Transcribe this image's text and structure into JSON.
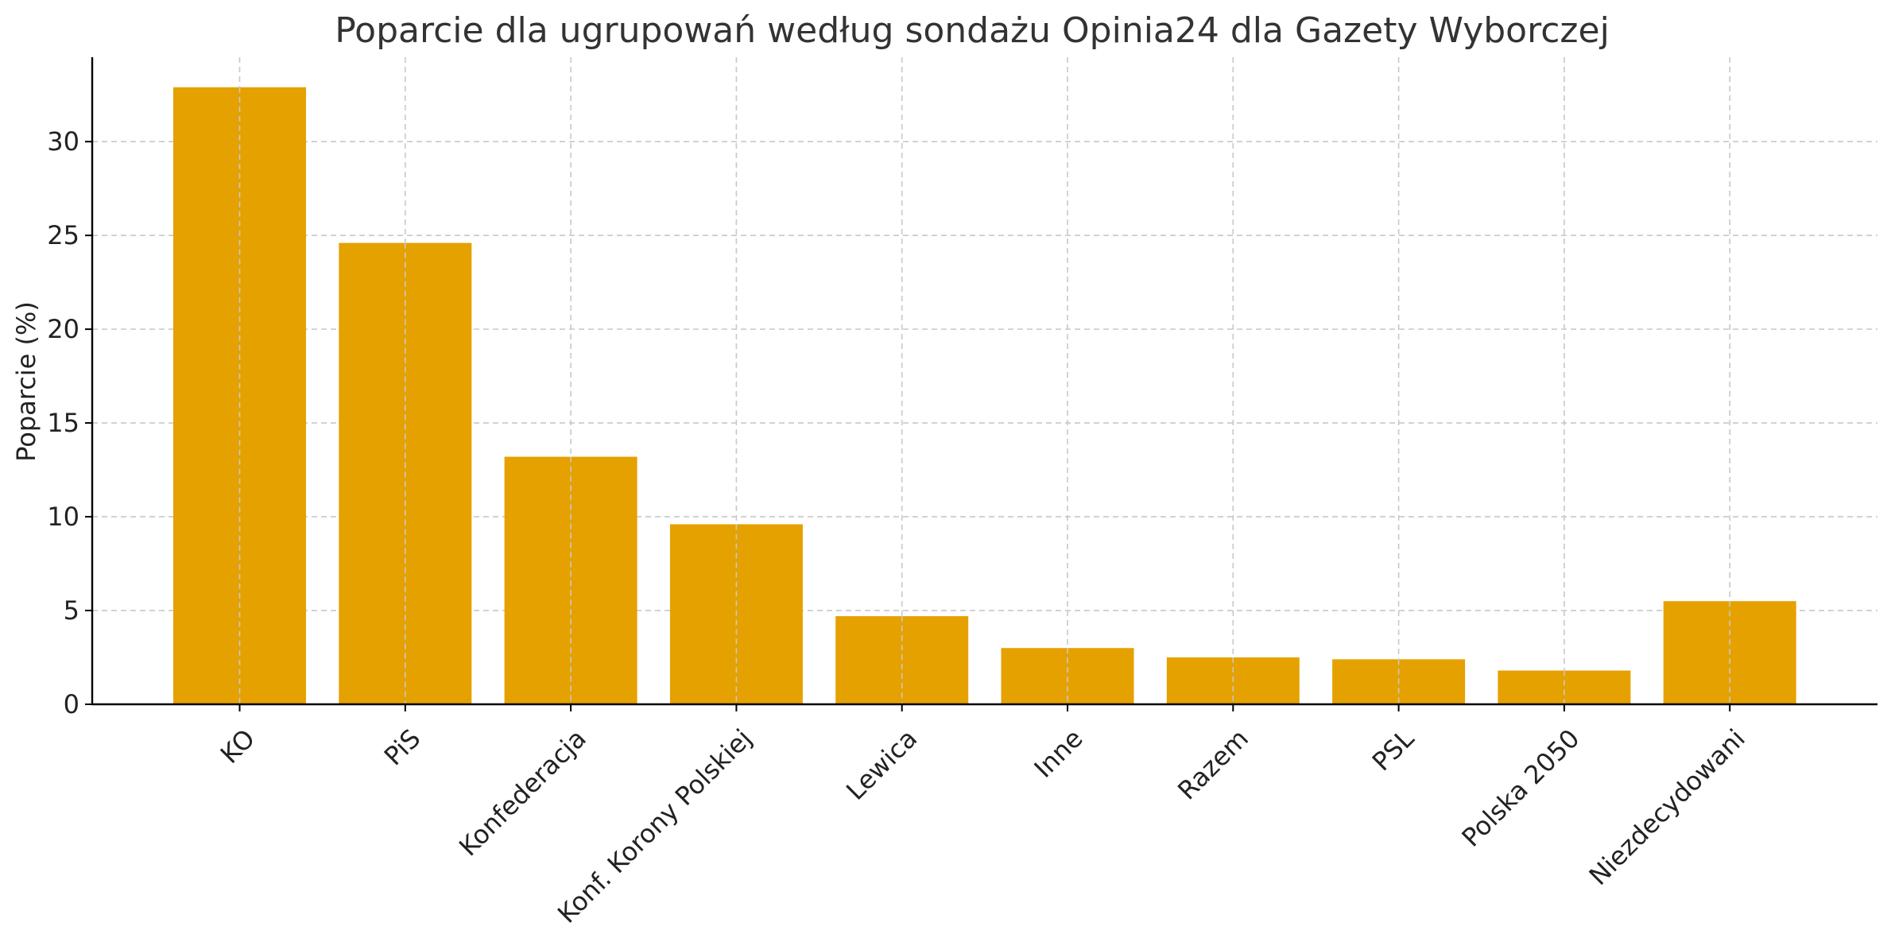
{
  "chart_data": {
    "type": "bar",
    "title": "Poparcie dla ugrupowań według sondażu Opinia24 dla Gazety Wyborczej",
    "xlabel": "",
    "ylabel": "Poparcie (%)",
    "categories": [
      "KO",
      "PiS",
      "Konfederacja",
      "Konf. Korony Polskiej",
      "Lewica",
      "Inne",
      "Razem",
      "PSL",
      "Polska 2050",
      "Niezdecydowani"
    ],
    "values": [
      32.9,
      24.6,
      13.2,
      9.6,
      4.7,
      3.0,
      2.5,
      2.4,
      1.8,
      5.5
    ],
    "ylim": [
      0,
      34.5
    ],
    "yticks": [
      0,
      5,
      10,
      15,
      20,
      25,
      30
    ],
    "bar_color": "#e5a100",
    "grid": true
  }
}
